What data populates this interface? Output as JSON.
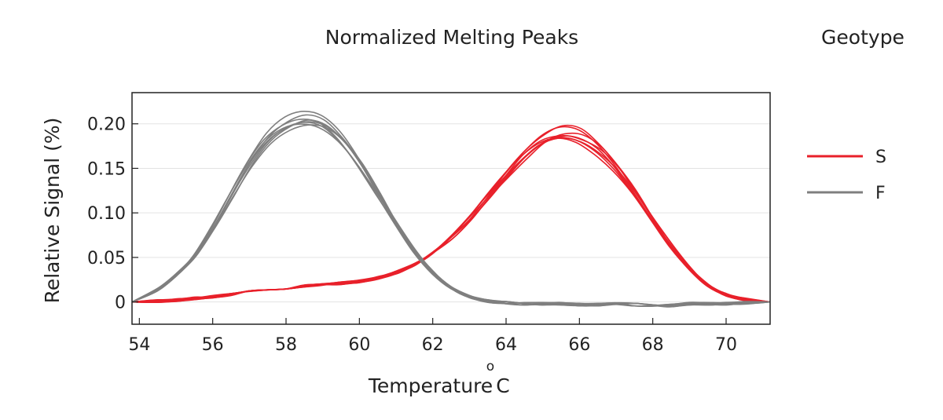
{
  "chart_data": {
    "type": "line",
    "title": "Normalized Melting Peaks",
    "legend_title": "Geotype",
    "xlabel": "Temperature",
    "xlabel_unit": "C",
    "degree_symbol": "o",
    "ylabel": "Relative Signal (%)",
    "xlim": [
      53.8,
      71.2
    ],
    "ylim": [
      -0.025,
      0.235
    ],
    "x_ticks": [
      54,
      56,
      58,
      60,
      62,
      64,
      66,
      68,
      70
    ],
    "x_tick_labels": [
      "54",
      "56",
      "58",
      "60",
      "62",
      "64",
      "66",
      "68",
      "70"
    ],
    "y_ticks": [
      0,
      0.05,
      0.1,
      0.15,
      0.2
    ],
    "y_tick_labels": [
      "0",
      "0.05",
      "0.10",
      "0.15",
      "0.20"
    ],
    "series": [
      {
        "name": "S",
        "color": "#e8202a",
        "replicates": 8,
        "x": [
          53.8,
          54.5,
          55,
          55.5,
          56,
          56.5,
          57,
          57.5,
          58,
          58.5,
          59,
          59.5,
          60,
          60.5,
          61,
          61.5,
          62,
          62.5,
          63,
          63.5,
          64,
          64.5,
          65,
          65.5,
          66,
          66.5,
          67,
          67.5,
          68,
          68.5,
          69,
          69.5,
          70,
          70.5,
          71.2
        ],
        "values": [
          0,
          0.001,
          0.002,
          0.004,
          0.006,
          0.008,
          0.011,
          0.014,
          0.016,
          0.018,
          0.019,
          0.021,
          0.023,
          0.027,
          0.033,
          0.042,
          0.055,
          0.072,
          0.093,
          0.117,
          0.141,
          0.163,
          0.179,
          0.186,
          0.183,
          0.17,
          0.149,
          0.122,
          0.092,
          0.063,
          0.038,
          0.019,
          0.008,
          0.003,
          0
        ]
      },
      {
        "name": "F",
        "color": "#7f7f7f",
        "replicates": 8,
        "x": [
          53.8,
          54.5,
          55,
          55.5,
          56,
          56.5,
          57,
          57.5,
          58,
          58.5,
          59,
          59.5,
          60,
          60.5,
          61,
          61.5,
          62,
          62.5,
          63,
          63.5,
          64,
          64.5,
          65,
          65.5,
          66,
          66.5,
          67,
          67.5,
          68,
          68.5,
          69,
          69.5,
          70,
          70.5,
          71.2
        ],
        "values": [
          0,
          0.014,
          0.03,
          0.052,
          0.083,
          0.118,
          0.152,
          0.18,
          0.196,
          0.201,
          0.196,
          0.18,
          0.154,
          0.121,
          0.088,
          0.057,
          0.033,
          0.016,
          0.006,
          0.001,
          -0.001,
          -0.002,
          -0.002,
          -0.002,
          -0.003,
          -0.003,
          -0.002,
          -0.003,
          -0.004,
          -0.004,
          -0.002,
          -0.002,
          -0.002,
          -0.001,
          0
        ]
      }
    ]
  }
}
